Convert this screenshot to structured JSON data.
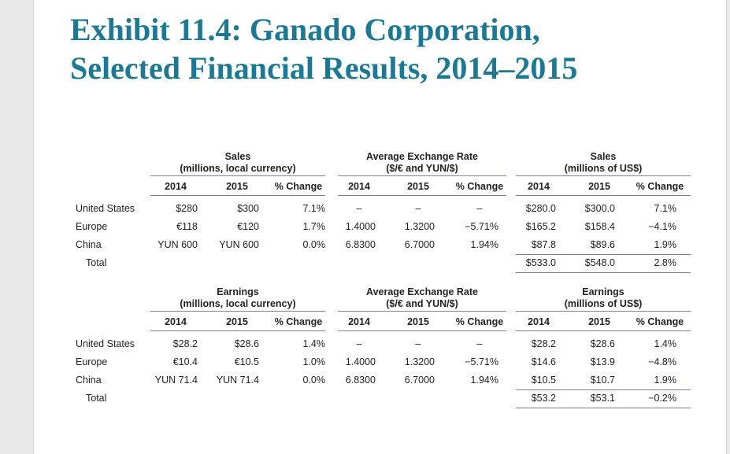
{
  "title": {
    "line1": "Exhibit 11.4: Ganado Corporation,",
    "line2": "Selected Financial Results, 2014–2015"
  },
  "columns": [
    "2014",
    "2015",
    "% Change"
  ],
  "sales_table": {
    "local_header": [
      "Sales",
      "(millions, local currency)"
    ],
    "fx_header": [
      "Average Exchange Rate",
      "($/€ and YUN/$)"
    ],
    "usd_header": [
      "Sales",
      "(millions of US$)"
    ],
    "rows": [
      {
        "label": "United States",
        "local": [
          "$280",
          "$300",
          "7.1%"
        ],
        "fx": [
          "–",
          "–",
          "–"
        ],
        "usd": [
          "$280.0",
          "$300.0",
          "7.1%"
        ]
      },
      {
        "label": "Europe",
        "local": [
          "€118",
          "€120",
          "1.7%"
        ],
        "fx": [
          "1.4000",
          "1.3200",
          "−5.71%"
        ],
        "usd": [
          "$165.2",
          "$158.4",
          "−4.1%"
        ]
      },
      {
        "label": "China",
        "local": [
          "YUN 600",
          "YUN 600",
          "0.0%"
        ],
        "fx": [
          "6.8300",
          "6.7000",
          "1.94%"
        ],
        "usd": [
          "$87.8",
          "$89.6",
          "1.9%"
        ]
      }
    ],
    "total": {
      "label": "Total",
      "usd": [
        "$533.0",
        "$548.0",
        "2.8%"
      ]
    }
  },
  "earnings_table": {
    "local_header": [
      "Earnings",
      "(millions, local currency)"
    ],
    "fx_header": [
      "Average Exchange Rate",
      "($/€ and YUN/$)"
    ],
    "usd_header": [
      "Earnings",
      "(millions of US$)"
    ],
    "rows": [
      {
        "label": "United States",
        "local": [
          "$28.2",
          "$28.6",
          "1.4%"
        ],
        "fx": [
          "–",
          "–",
          "–"
        ],
        "usd": [
          "$28.2",
          "$28.6",
          "1.4%"
        ]
      },
      {
        "label": "Europe",
        "local": [
          "€10.4",
          "€10.5",
          "1.0%"
        ],
        "fx": [
          "1.4000",
          "1.3200",
          "−5.71%"
        ],
        "usd": [
          "$14.6",
          "$13.9",
          "−4.8%"
        ]
      },
      {
        "label": "China",
        "local": [
          "YUN 71.4",
          "YUN 71.4",
          "0.0%"
        ],
        "fx": [
          "6.8300",
          "6.7000",
          "1.94%"
        ],
        "usd": [
          "$10.5",
          "$10.7",
          "1.9%"
        ]
      }
    ],
    "total": {
      "label": "Total",
      "usd": [
        "$53.2",
        "$53.1",
        "−0.2%"
      ]
    }
  }
}
